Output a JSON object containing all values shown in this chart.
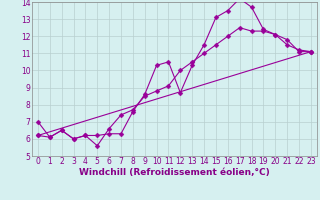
{
  "xlabel": "Windchill (Refroidissement éolien,°C)",
  "ylabel": "",
  "bg_color": "#d6f0f0",
  "line_color": "#990099",
  "grid_color": "#b8d0d0",
  "xlim": [
    -0.5,
    23.5
  ],
  "ylim": [
    5,
    14
  ],
  "xticks": [
    0,
    1,
    2,
    3,
    4,
    5,
    6,
    7,
    8,
    9,
    10,
    11,
    12,
    13,
    14,
    15,
    16,
    17,
    18,
    19,
    20,
    21,
    22,
    23
  ],
  "yticks": [
    5,
    6,
    7,
    8,
    9,
    10,
    11,
    12,
    13,
    14
  ],
  "line1_x": [
    0,
    1,
    2,
    3,
    4,
    5,
    6,
    7,
    8,
    9,
    10,
    11,
    12,
    13,
    14,
    15,
    16,
    17,
    18,
    19,
    20,
    21,
    22,
    23
  ],
  "line1_y": [
    7.0,
    6.1,
    6.5,
    6.0,
    6.2,
    6.2,
    6.3,
    6.3,
    7.6,
    8.6,
    10.3,
    10.5,
    8.7,
    10.3,
    11.5,
    13.1,
    13.5,
    14.2,
    13.7,
    12.4,
    12.1,
    11.8,
    11.1,
    11.1
  ],
  "line2_x": [
    0,
    1,
    2,
    3,
    4,
    5,
    6,
    7,
    8,
    9,
    10,
    11,
    12,
    13,
    14,
    15,
    16,
    17,
    18,
    19,
    20,
    21,
    22,
    23
  ],
  "line2_y": [
    6.2,
    6.1,
    6.5,
    6.0,
    6.2,
    5.6,
    6.6,
    7.4,
    7.7,
    8.5,
    8.8,
    9.1,
    10.0,
    10.5,
    11.0,
    11.5,
    12.0,
    12.5,
    12.3,
    12.3,
    12.1,
    11.5,
    11.2,
    11.1
  ],
  "line3_x": [
    0,
    23
  ],
  "line3_y": [
    6.2,
    11.1
  ],
  "marker": "D",
  "markersize": 2.5,
  "linewidth": 0.8,
  "tick_fontsize": 5.5,
  "xlabel_fontsize": 6.5
}
